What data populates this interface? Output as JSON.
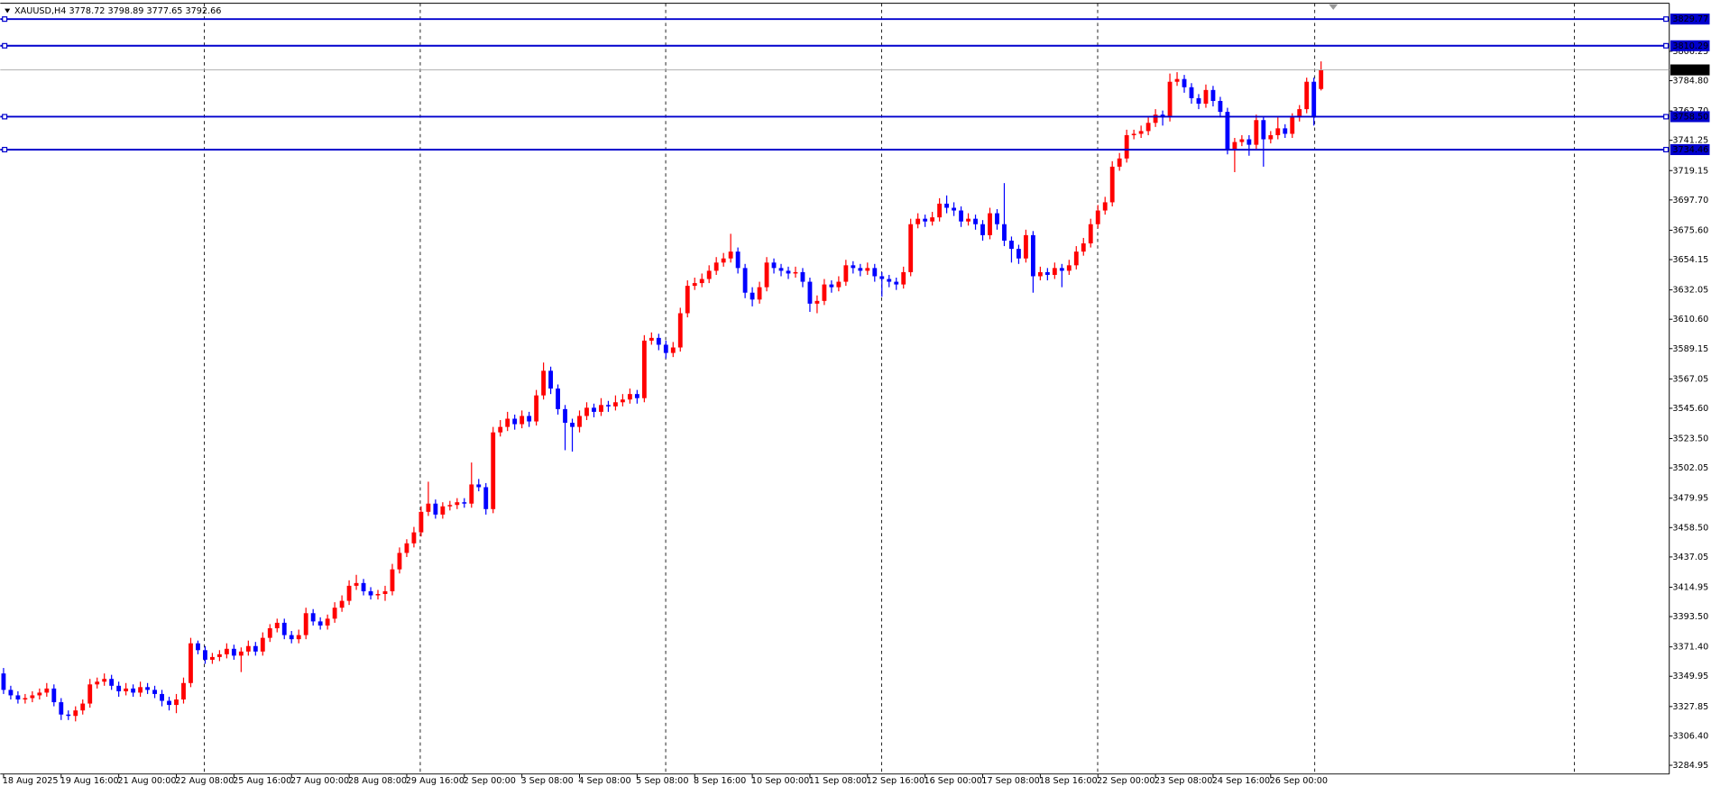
{
  "chart_data": {
    "type": "candlestick",
    "title": "XAUUSD,H4  3778.72 3798.89 3777.65 3792.66",
    "bull_color": "#ff0000",
    "bear_color": "#0000ff",
    "line_color": "#0000cd",
    "ylim": [
      3278.58,
      3839.72
    ],
    "yticks": [
      3284.95,
      {
        "value": 3306.4,
        "label": "3306.40"
      },
      3327.85,
      3349.95,
      {
        "value": 3371.4,
        "label": "3371.40"
      },
      {
        "value": 3393.5,
        "label": "3393.50"
      },
      3414.95,
      3437.05,
      {
        "value": 3458.5,
        "label": "3458.50"
      },
      3479.95,
      3502.05,
      {
        "value": 3523.5,
        "label": "3523.50"
      },
      {
        "value": 3545.6,
        "label": "3545.60"
      },
      3567.05,
      3589.15,
      {
        "value": 3610.6,
        "label": "3610.60"
      },
      3632.05,
      3654.15,
      {
        "value": 3675.6,
        "label": "3675.60"
      },
      {
        "value": 3697.7,
        "label": "3697.70"
      },
      3719.15,
      3741.25,
      {
        "value": 3762.7,
        "label": "3762.70"
      },
      {
        "value": 3784.8,
        "label": "3784.80"
      },
      3806.25
    ],
    "hlines": [
      3829.77,
      3810.29,
      {
        "value": 3758.5,
        "label": "3758.50"
      },
      3734.46
    ],
    "current_price": 3792.66,
    "categories": [
      "18 Aug 2025",
      null,
      null,
      null,
      null,
      null,
      null,
      null,
      "19 Aug 16:00",
      null,
      null,
      null,
      null,
      null,
      null,
      null,
      "21 Aug 00:00",
      null,
      null,
      null,
      null,
      null,
      null,
      null,
      "22 Aug 08:00",
      null,
      null,
      null,
      null,
      null,
      null,
      null,
      "25 Aug 16:00",
      null,
      null,
      null,
      null,
      null,
      null,
      null,
      "27 Aug 00:00",
      null,
      null,
      null,
      null,
      null,
      null,
      null,
      "28 Aug 08:00",
      null,
      null,
      null,
      null,
      null,
      null,
      null,
      "29 Aug 16:00",
      null,
      null,
      null,
      null,
      null,
      null,
      null,
      "2 Sep 00:00",
      null,
      null,
      null,
      null,
      null,
      null,
      null,
      "3 Sep 08:00",
      null,
      null,
      null,
      null,
      null,
      null,
      null,
      "4 Sep 08:00",
      null,
      null,
      null,
      null,
      null,
      null,
      null,
      "5 Sep 08:00",
      null,
      null,
      null,
      null,
      null,
      null,
      null,
      "8 Sep 16:00",
      null,
      null,
      null,
      null,
      null,
      null,
      null,
      "10 Sep 00:00",
      null,
      null,
      null,
      null,
      null,
      null,
      null,
      "11 Sep 08:00",
      null,
      null,
      null,
      null,
      null,
      null,
      null,
      "12 Sep 16:00",
      null,
      null,
      null,
      null,
      null,
      null,
      null,
      "16 Sep 00:00",
      null,
      null,
      null,
      null,
      null,
      null,
      null,
      "17 Sep 08:00",
      null,
      null,
      null,
      null,
      null,
      null,
      null,
      "18 Sep 16:00",
      null,
      null,
      null,
      null,
      null,
      null,
      null,
      "22 Sep 00:00",
      null,
      null,
      null,
      null,
      null,
      null,
      null,
      "23 Sep 08:00",
      null,
      null,
      null,
      null,
      null,
      null,
      null,
      "24 Sep 16:00",
      null,
      null,
      null,
      null,
      null,
      null,
      null,
      "26 Sep 00:00",
      null,
      null,
      null,
      null,
      null,
      null,
      null
    ],
    "ohlc": [
      [
        3352,
        3356,
        3337,
        3340
      ],
      [
        3340,
        3343,
        3333,
        3336
      ],
      [
        3336,
        3339,
        3330,
        3333
      ],
      [
        3333,
        3337,
        3330,
        3334
      ],
      [
        3334,
        3339,
        3331,
        3336
      ],
      [
        3336,
        3341,
        3333,
        3338
      ],
      [
        3338,
        3345,
        3335,
        3341
      ],
      [
        3341,
        3344,
        3328,
        3331
      ],
      [
        3331,
        3334,
        3318,
        3322
      ],
      [
        3322,
        3325,
        3318,
        3321
      ],
      [
        3321,
        3328,
        3317,
        3325
      ],
      [
        3325,
        3333,
        3322,
        3330
      ],
      [
        3330,
        3348,
        3327,
        3344
      ],
      [
        3344,
        3349,
        3341,
        3346
      ],
      [
        3346,
        3352,
        3343,
        3348
      ],
      [
        3348,
        3351,
        3340,
        3343
      ],
      [
        3343,
        3346,
        3335,
        3339
      ],
      [
        3339,
        3345,
        3336,
        3341
      ],
      [
        3341,
        3344,
        3335,
        3338
      ],
      [
        3338,
        3346,
        3335,
        3342
      ],
      [
        3342,
        3345,
        3337,
        3340
      ],
      [
        3340,
        3343,
        3334,
        3337
      ],
      [
        3337,
        3340,
        3328,
        3332
      ],
      [
        3332,
        3335,
        3325,
        3329
      ],
      [
        3329,
        3337,
        3323,
        3333
      ],
      [
        3333,
        3349,
        3330,
        3345
      ],
      [
        3345,
        3378,
        3342,
        3374
      ],
      [
        3374,
        3376,
        3366,
        3369
      ],
      [
        3369,
        3372,
        3359,
        3362
      ],
      [
        3362,
        3367,
        3359,
        3364
      ],
      [
        3364,
        3369,
        3361,
        3366
      ],
      [
        3366,
        3374,
        3363,
        3370
      ],
      [
        3370,
        3373,
        3362,
        3365
      ],
      [
        3365,
        3371,
        3353,
        3368
      ],
      [
        3368,
        3376,
        3365,
        3372
      ],
      [
        3372,
        3375,
        3365,
        3368
      ],
      [
        3368,
        3382,
        3365,
        3378
      ],
      [
        3378,
        3388,
        3375,
        3385
      ],
      [
        3385,
        3392,
        3382,
        3389
      ],
      [
        3389,
        3392,
        3377,
        3380
      ],
      [
        3380,
        3383,
        3374,
        3377
      ],
      [
        3377,
        3384,
        3374,
        3380
      ],
      [
        3380,
        3400,
        3377,
        3396
      ],
      [
        3396,
        3399,
        3387,
        3390
      ],
      [
        3390,
        3393,
        3384,
        3387
      ],
      [
        3387,
        3395,
        3384,
        3392
      ],
      [
        3392,
        3404,
        3389,
        3400
      ],
      [
        3400,
        3409,
        3397,
        3405
      ],
      [
        3405,
        3420,
        3402,
        3416
      ],
      [
        3416,
        3424,
        3413,
        3418
      ],
      [
        3418,
        3421,
        3409,
        3412
      ],
      [
        3412,
        3415,
        3406,
        3409
      ],
      [
        3409,
        3413,
        3406,
        3410
      ],
      [
        3410,
        3416,
        3405,
        3412
      ],
      [
        3412,
        3432,
        3409,
        3428
      ],
      [
        3428,
        3444,
        3425,
        3440
      ],
      [
        3440,
        3450,
        3437,
        3447
      ],
      [
        3447,
        3459,
        3444,
        3455
      ],
      [
        3455,
        3474,
        3452,
        3470
      ],
      [
        3470,
        3492,
        3467,
        3476
      ],
      [
        3476,
        3479,
        3465,
        3468
      ],
      [
        3468,
        3477,
        3465,
        3474
      ],
      [
        3474,
        3478,
        3471,
        3475
      ],
      [
        3475,
        3480,
        3472,
        3477
      ],
      [
        3477,
        3480,
        3473,
        3476
      ],
      [
        3476,
        3506,
        3473,
        3490
      ],
      [
        3490,
        3494,
        3485,
        3488
      ],
      [
        3488,
        3491,
        3468,
        3472
      ],
      [
        3472,
        3532,
        3469,
        3528
      ],
      [
        3528,
        3537,
        3525,
        3532
      ],
      [
        3532,
        3543,
        3529,
        3538
      ],
      [
        3538,
        3541,
        3530,
        3534
      ],
      [
        3534,
        3544,
        3531,
        3540
      ],
      [
        3540,
        3543,
        3532,
        3536
      ],
      [
        3536,
        3559,
        3533,
        3555
      ],
      [
        3555,
        3579,
        3552,
        3573
      ],
      [
        3573,
        3576,
        3556,
        3560
      ],
      [
        3560,
        3563,
        3541,
        3545
      ],
      [
        3545,
        3548,
        3515,
        3535
      ],
      [
        3535,
        3538,
        3514,
        3532
      ],
      [
        3532,
        3544,
        3528,
        3540
      ],
      [
        3540,
        3550,
        3537,
        3546
      ],
      [
        3546,
        3549,
        3539,
        3543
      ],
      [
        3543,
        3553,
        3540,
        3548
      ],
      [
        3548,
        3551,
        3543,
        3547
      ],
      [
        3547,
        3555,
        3544,
        3550
      ],
      [
        3550,
        3556,
        3547,
        3552
      ],
      [
        3552,
        3560,
        3549,
        3556
      ],
      [
        3556,
        3559,
        3549,
        3553
      ],
      [
        3553,
        3599,
        3550,
        3595
      ],
      [
        3595,
        3601,
        3592,
        3597
      ],
      [
        3597,
        3600,
        3588,
        3592
      ],
      [
        3592,
        3595,
        3582,
        3586
      ],
      [
        3586,
        3594,
        3583,
        3590
      ],
      [
        3590,
        3619,
        3587,
        3615
      ],
      [
        3615,
        3639,
        3612,
        3635
      ],
      [
        3635,
        3641,
        3632,
        3637
      ],
      [
        3637,
        3644,
        3634,
        3640
      ],
      [
        3640,
        3650,
        3637,
        3646
      ],
      [
        3646,
        3656,
        3643,
        3652
      ],
      [
        3652,
        3659,
        3649,
        3655
      ],
      [
        3655,
        3673,
        3652,
        3660
      ],
      [
        3660,
        3663,
        3644,
        3648
      ],
      [
        3648,
        3651,
        3626,
        3630
      ],
      [
        3630,
        3634,
        3620,
        3625
      ],
      [
        3625,
        3638,
        3622,
        3634
      ],
      [
        3634,
        3656,
        3631,
        3652
      ],
      [
        3652,
        3655,
        3644,
        3648
      ],
      [
        3648,
        3651,
        3642,
        3646
      ],
      [
        3646,
        3649,
        3640,
        3644
      ],
      [
        3644,
        3649,
        3641,
        3645
      ],
      [
        3645,
        3648,
        3634,
        3638
      ],
      [
        3638,
        3641,
        3616,
        3622
      ],
      [
        3622,
        3628,
        3615,
        3624
      ],
      [
        3624,
        3640,
        3621,
        3636
      ],
      [
        3636,
        3639,
        3630,
        3634
      ],
      [
        3634,
        3642,
        3631,
        3638
      ],
      [
        3638,
        3654,
        3635,
        3650
      ],
      [
        3650,
        3653,
        3644,
        3648
      ],
      [
        3648,
        3651,
        3642,
        3646
      ],
      [
        3646,
        3652,
        3643,
        3648
      ],
      [
        3648,
        3651,
        3638,
        3642
      ],
      [
        3642,
        3645,
        3627,
        3640
      ],
      [
        3640,
        3643,
        3634,
        3638
      ],
      [
        3638,
        3641,
        3632,
        3636
      ],
      [
        3636,
        3649,
        3633,
        3645
      ],
      [
        3645,
        3684,
        3642,
        3680
      ],
      [
        3680,
        3688,
        3677,
        3684
      ],
      [
        3684,
        3687,
        3678,
        3682
      ],
      [
        3682,
        3689,
        3679,
        3685
      ],
      [
        3685,
        3699,
        3682,
        3695
      ],
      [
        3695,
        3701,
        3688,
        3692
      ],
      [
        3692,
        3696,
        3686,
        3690
      ],
      [
        3690,
        3693,
        3678,
        3682
      ],
      [
        3682,
        3688,
        3679,
        3684
      ],
      [
        3684,
        3687,
        3676,
        3680
      ],
      [
        3680,
        3683,
        3668,
        3672
      ],
      [
        3672,
        3692,
        3669,
        3688
      ],
      [
        3688,
        3691,
        3676,
        3680
      ],
      [
        3680,
        3710,
        3664,
        3668
      ],
      [
        3668,
        3671,
        3652,
        3662
      ],
      [
        3662,
        3665,
        3651,
        3655
      ],
      [
        3655,
        3676,
        3652,
        3672
      ],
      [
        3672,
        3675,
        3630,
        3642
      ],
      [
        3642,
        3649,
        3639,
        3645
      ],
      [
        3645,
        3648,
        3639,
        3643
      ],
      [
        3643,
        3652,
        3640,
        3648
      ],
      [
        3648,
        3651,
        3634,
        3646
      ],
      [
        3646,
        3654,
        3643,
        3650
      ],
      [
        3650,
        3664,
        3647,
        3660
      ],
      [
        3660,
        3670,
        3657,
        3666
      ],
      [
        3666,
        3684,
        3663,
        3680
      ],
      [
        3680,
        3694,
        3677,
        3690
      ],
      [
        3690,
        3700,
        3687,
        3696
      ],
      [
        3696,
        3726,
        3693,
        3722
      ],
      [
        3722,
        3732,
        3719,
        3728
      ],
      [
        3728,
        3749,
        3725,
        3745
      ],
      [
        3745,
        3749,
        3742,
        3746
      ],
      [
        3746,
        3752,
        3743,
        3748
      ],
      [
        3748,
        3758,
        3745,
        3754
      ],
      [
        3754,
        3764,
        3751,
        3760
      ],
      [
        3760,
        3763,
        3752,
        3758
      ],
      [
        3758,
        3790,
        3755,
        3784
      ],
      [
        3784,
        3791,
        3781,
        3786
      ],
      [
        3786,
        3789,
        3776,
        3780
      ],
      [
        3780,
        3783,
        3768,
        3772
      ],
      [
        3772,
        3775,
        3764,
        3768
      ],
      [
        3768,
        3782,
        3765,
        3778
      ],
      [
        3778,
        3781,
        3766,
        3770
      ],
      [
        3770,
        3773,
        3758,
        3762
      ],
      [
        3762,
        3765,
        3731,
        3735
      ],
      [
        3735,
        3743,
        3718,
        3740
      ],
      [
        3740,
        3745,
        3737,
        3742
      ],
      [
        3742,
        3745,
        3730,
        3738
      ],
      [
        3738,
        3760,
        3735,
        3756
      ],
      [
        3756,
        3759,
        3722,
        3742
      ],
      [
        3742,
        3748,
        3739,
        3745
      ],
      [
        3745,
        3758,
        3742,
        3750
      ],
      [
        3750,
        3753,
        3743,
        3746
      ],
      [
        3746,
        3761,
        3743,
        3758
      ],
      [
        3758,
        3767,
        3755,
        3764
      ],
      [
        3764,
        3787,
        3761,
        3784
      ],
      [
        3784,
        3787,
        3752,
        3758
      ],
      [
        3778.72,
        3798.89,
        3777.65,
        3792.66
      ]
    ]
  }
}
